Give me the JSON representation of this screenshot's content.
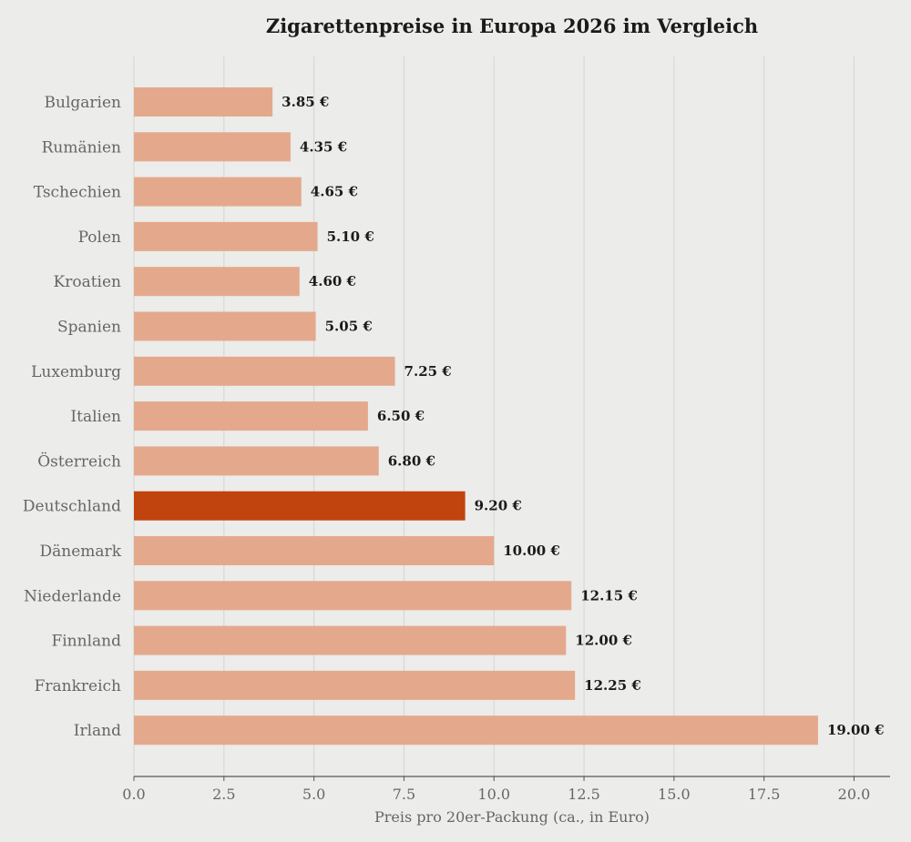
{
  "chart_data": {
    "type": "bar",
    "orientation": "horizontal",
    "title": "Zigarettenpreise in Europa 2026 im Vergleich",
    "xlabel": "Preis pro 20er-Packung (ca., in Euro)",
    "ylabel": "",
    "categories": [
      "Bulgarien",
      "Rumänien",
      "Tschechien",
      "Polen",
      "Kroatien",
      "Spanien",
      "Luxemburg",
      "Italien",
      "Österreich",
      "Deutschland",
      "Dänemark",
      "Niederlande",
      "Finnland",
      "Frankreich",
      "Irland"
    ],
    "values": [
      3.85,
      4.35,
      4.65,
      5.1,
      4.6,
      5.05,
      7.25,
      6.5,
      6.8,
      9.2,
      10.0,
      12.15,
      12.0,
      12.25,
      19.0
    ],
    "value_labels": [
      "3.85 €",
      "4.35 €",
      "4.65 €",
      "5.10 €",
      "4.60 €",
      "5.05 €",
      "7.25 €",
      "6.50 €",
      "6.80 €",
      "9.20 €",
      "10.00 €",
      "12.15 €",
      "12.00 €",
      "12.25 €",
      "19.00 €"
    ],
    "xlim": [
      0,
      21
    ],
    "xticks": [
      0,
      2.5,
      5,
      7.5,
      10,
      12.5,
      15,
      17.5,
      20
    ],
    "xtick_labels": [
      "0.0",
      "2.5",
      "5.0",
      "7.5",
      "10.0",
      "12.5",
      "15.0",
      "17.5",
      "20.0"
    ],
    "highlight_category": "Deutschland",
    "grid": "vertical",
    "legend": "none",
    "colors": {
      "bar": "#e4a98c",
      "highlight": "#c1440e",
      "background": "#ececea",
      "grid": "#d4d4d2",
      "axis": "#555555",
      "value_text": "#1a1a1a",
      "tick_text": "#666666"
    }
  }
}
